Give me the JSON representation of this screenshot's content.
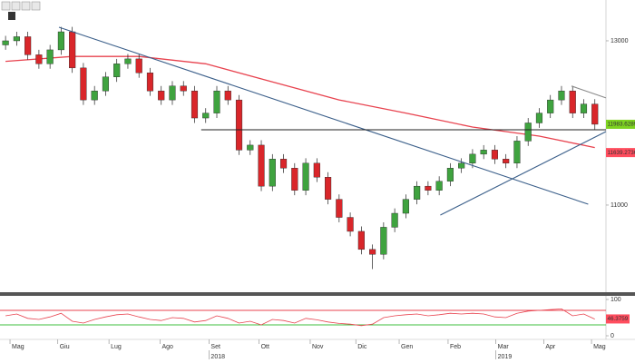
{
  "chart_data": {
    "type": "candlestick",
    "xlim": [
      -0.5,
      54
    ],
    "xticks": [
      {
        "value": 0.4,
        "label": "Mag"
      },
      {
        "value": 4.7,
        "label": "Giu"
      },
      {
        "value": 9.3,
        "label": "Lug"
      },
      {
        "value": 13.9,
        "label": "Ago"
      },
      {
        "value": 18.3,
        "label": "Set"
      },
      {
        "value": 22.8,
        "label": "Ott"
      },
      {
        "value": 27.4,
        "label": "Nov"
      },
      {
        "value": 31.5,
        "label": "Dic"
      },
      {
        "value": 35.4,
        "label": "Gen"
      },
      {
        "value": 39.8,
        "label": "Feb"
      },
      {
        "value": 44.1,
        "label": "Mar"
      },
      {
        "value": 48.4,
        "label": "Apr"
      },
      {
        "value": 52.7,
        "label": "Mag"
      }
    ],
    "year_ticks": [
      {
        "value": 18.3,
        "label": "2018"
      },
      {
        "value": 44.1,
        "label": "2019"
      }
    ],
    "ylim": [
      9961,
      13497
    ],
    "yticks": [
      11000,
      13000
    ],
    "up_color": "#3fa33f",
    "down_color": "#d9262a",
    "ohlc": [
      [
        12950,
        13060,
        12890,
        13000
      ],
      [
        13000,
        13110,
        12940,
        13050
      ],
      [
        13050,
        13110,
        12770,
        12830
      ],
      [
        12830,
        12890,
        12660,
        12720
      ],
      [
        12720,
        12950,
        12660,
        12890
      ],
      [
        12890,
        13170,
        12830,
        13110
      ],
      [
        13110,
        13170,
        12610,
        12670
      ],
      [
        12670,
        12730,
        12220,
        12280
      ],
      [
        12280,
        12450,
        12220,
        12390
      ],
      [
        12390,
        12620,
        12330,
        12560
      ],
      [
        12560,
        12780,
        12500,
        12720
      ],
      [
        12720,
        12840,
        12660,
        12780
      ],
      [
        12780,
        12840,
        12550,
        12610
      ],
      [
        12610,
        12670,
        12330,
        12390
      ],
      [
        12390,
        12450,
        12220,
        12280
      ],
      [
        12280,
        12510,
        12220,
        12450
      ],
      [
        12450,
        12510,
        12330,
        12390
      ],
      [
        12390,
        12450,
        12000,
        12060
      ],
      [
        12060,
        12180,
        12000,
        12120
      ],
      [
        12120,
        12450,
        12060,
        12390
      ],
      [
        12390,
        12450,
        12220,
        12280
      ],
      [
        12280,
        12340,
        11610,
        11670
      ],
      [
        11670,
        11790,
        11610,
        11730
      ],
      [
        11730,
        11790,
        11170,
        11230
      ],
      [
        11230,
        11620,
        11170,
        11560
      ],
      [
        11560,
        11620,
        11390,
        11450
      ],
      [
        11450,
        11510,
        11120,
        11180
      ],
      [
        11180,
        11570,
        11120,
        11510
      ],
      [
        11510,
        11570,
        11280,
        11340
      ],
      [
        11340,
        11400,
        11010,
        11070
      ],
      [
        11070,
        11130,
        10790,
        10850
      ],
      [
        10850,
        10910,
        10620,
        10680
      ],
      [
        10680,
        10740,
        10400,
        10460
      ],
      [
        10460,
        10520,
        10220,
        10400
      ],
      [
        10400,
        10790,
        10340,
        10730
      ],
      [
        10730,
        10960,
        10670,
        10900
      ],
      [
        10900,
        11130,
        10840,
        11070
      ],
      [
        11070,
        11290,
        11010,
        11230
      ],
      [
        11230,
        11290,
        11120,
        11180
      ],
      [
        11180,
        11350,
        11120,
        11290
      ],
      [
        11290,
        11510,
        11230,
        11450
      ],
      [
        11450,
        11570,
        11390,
        11510
      ],
      [
        11510,
        11680,
        11450,
        11620
      ],
      [
        11620,
        11730,
        11560,
        11670
      ],
      [
        11670,
        11730,
        11500,
        11560
      ],
      [
        11560,
        11620,
        11450,
        11510
      ],
      [
        11510,
        11840,
        11450,
        11780
      ],
      [
        11780,
        12060,
        11720,
        12000
      ],
      [
        12000,
        12180,
        11940,
        12120
      ],
      [
        12120,
        12340,
        12060,
        12280
      ],
      [
        12280,
        12450,
        12220,
        12390
      ],
      [
        12390,
        12450,
        12060,
        12120
      ],
      [
        12120,
        12290,
        12060,
        12230
      ],
      [
        12230,
        12290,
        11920,
        11984
      ]
    ],
    "moving_average": {
      "color": "#e8434f",
      "x": [
        0,
        6,
        12,
        18,
        24,
        30,
        36,
        42,
        48,
        53
      ],
      "values": [
        12750,
        12810,
        12810,
        12720,
        12500,
        12280,
        12120,
        11950,
        11840,
        11700
      ]
    },
    "trend_lines": [
      {
        "color": "#3b5f8a",
        "x": [
          4.8,
          52.4
        ],
        "y": [
          13166,
          11011
        ]
      },
      {
        "color": "#3b5f8a",
        "x": [
          39.1,
          54
        ],
        "y": [
          10878,
          11895
        ]
      },
      {
        "color": "#222222",
        "x": [
          17.6,
          54
        ],
        "y": [
          11917,
          11917
        ]
      },
      {
        "color": "#8a8a8a",
        "x": [
          50.9,
          54
        ],
        "y": [
          12449,
          12305
        ]
      }
    ],
    "price_tags": [
      {
        "value": 11983.6289,
        "color": "#7ed321"
      },
      {
        "value": 11639.2736,
        "color": "#ff4d5e"
      }
    ],
    "oscillator": {
      "ylim": [
        0,
        100
      ],
      "yticks": [
        0,
        100
      ],
      "color": "#e8434f",
      "values": [
        55,
        60,
        48,
        45,
        52,
        62,
        40,
        35,
        45,
        52,
        58,
        60,
        52,
        45,
        42,
        50,
        48,
        38,
        42,
        55,
        48,
        35,
        40,
        30,
        45,
        42,
        35,
        48,
        44,
        38,
        34,
        32,
        28,
        32,
        50,
        55,
        58,
        60,
        55,
        58,
        62,
        60,
        62,
        60,
        52,
        50,
        62,
        68,
        70,
        72,
        74,
        55,
        60,
        46
      ],
      "levels": [
        {
          "value": 70,
          "color": "#e8434f"
        },
        {
          "value": 30,
          "color": "#3fbf3f"
        }
      ],
      "tag": {
        "value": 46.3759,
        "color": "#ff4d5e"
      }
    }
  }
}
